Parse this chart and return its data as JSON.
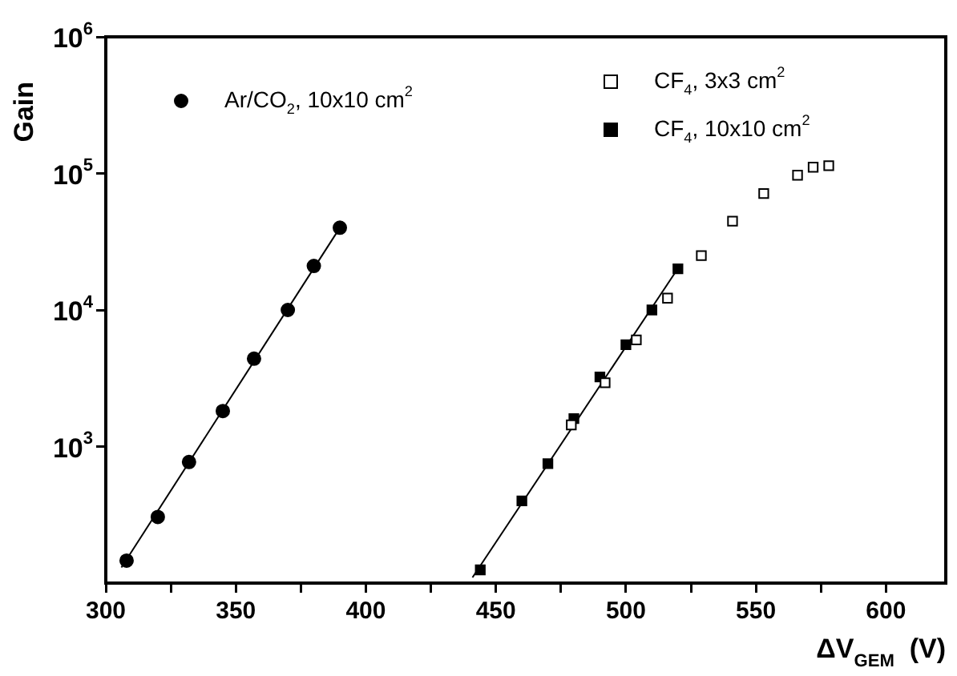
{
  "chart_data": {
    "type": "scatter",
    "ylabel": "Gain",
    "xlabel": "ΔV$_{GEM}$  (V)",
    "log": "y",
    "grid": false,
    "legend": "top",
    "xlim": [
      300,
      623
    ],
    "xticks": [
      300,
      {
        "value": 325,
        "label": null
      },
      350,
      {
        "value": 375,
        "label": null
      },
      400,
      {
        "value": 425,
        "label": null
      },
      450,
      {
        "value": 475,
        "label": null
      },
      500,
      {
        "value": 525,
        "label": null
      },
      550,
      {
        "value": 575,
        "label": null
      },
      600
    ],
    "ylim": [
      100,
      1000000
    ],
    "yticks": [
      {
        "value": 1000,
        "label": "10$^{3}$"
      },
      {
        "value": 10000,
        "label": "10$^{4}$"
      },
      {
        "value": 100000,
        "label": "10$^{5}$"
      },
      {
        "value": 1000000,
        "label": "10$^{6}$"
      }
    ],
    "series": [
      {
        "name": "Ar/CO$_{2}$, 10x10 cm$^{2}$",
        "marker": "circle",
        "color": "#000000",
        "x": [
          308,
          320,
          332,
          345,
          357,
          370,
          380,
          390
        ],
        "values": [
          146,
          305,
          770,
          1820,
          4400,
          10000,
          21000,
          40000
        ]
      },
      {
        "name": "CF$_{4}$, 3x3 cm$^{2}$",
        "marker": "square",
        "color": "#ffffff",
        "x": [
          479,
          492,
          504,
          516,
          529,
          541,
          553,
          566,
          572,
          578
        ],
        "values": [
          1440,
          2930,
          6030,
          12200,
          25000,
          44700,
          71300,
          97000,
          111000,
          114000
        ]
      },
      {
        "name": "CF$_{4}$, 10x10 cm$^{2}$",
        "marker": "square",
        "color": "#000000",
        "x": [
          444,
          460,
          470,
          480,
          490,
          500,
          510,
          520
        ],
        "values": [
          125,
          400,
          750,
          1600,
          3230,
          5570,
          10000,
          20000
        ]
      },
      {
        "type": "line",
        "marker": "none",
        "color": "#000000",
        "x": [
          306,
          390
        ],
        "values": [
          130,
          40000
        ]
      },
      {
        "type": "line",
        "marker": "none",
        "color": "#000000",
        "x": [
          441,
          521
        ],
        "values": [
          110,
          21500
        ]
      }
    ]
  }
}
